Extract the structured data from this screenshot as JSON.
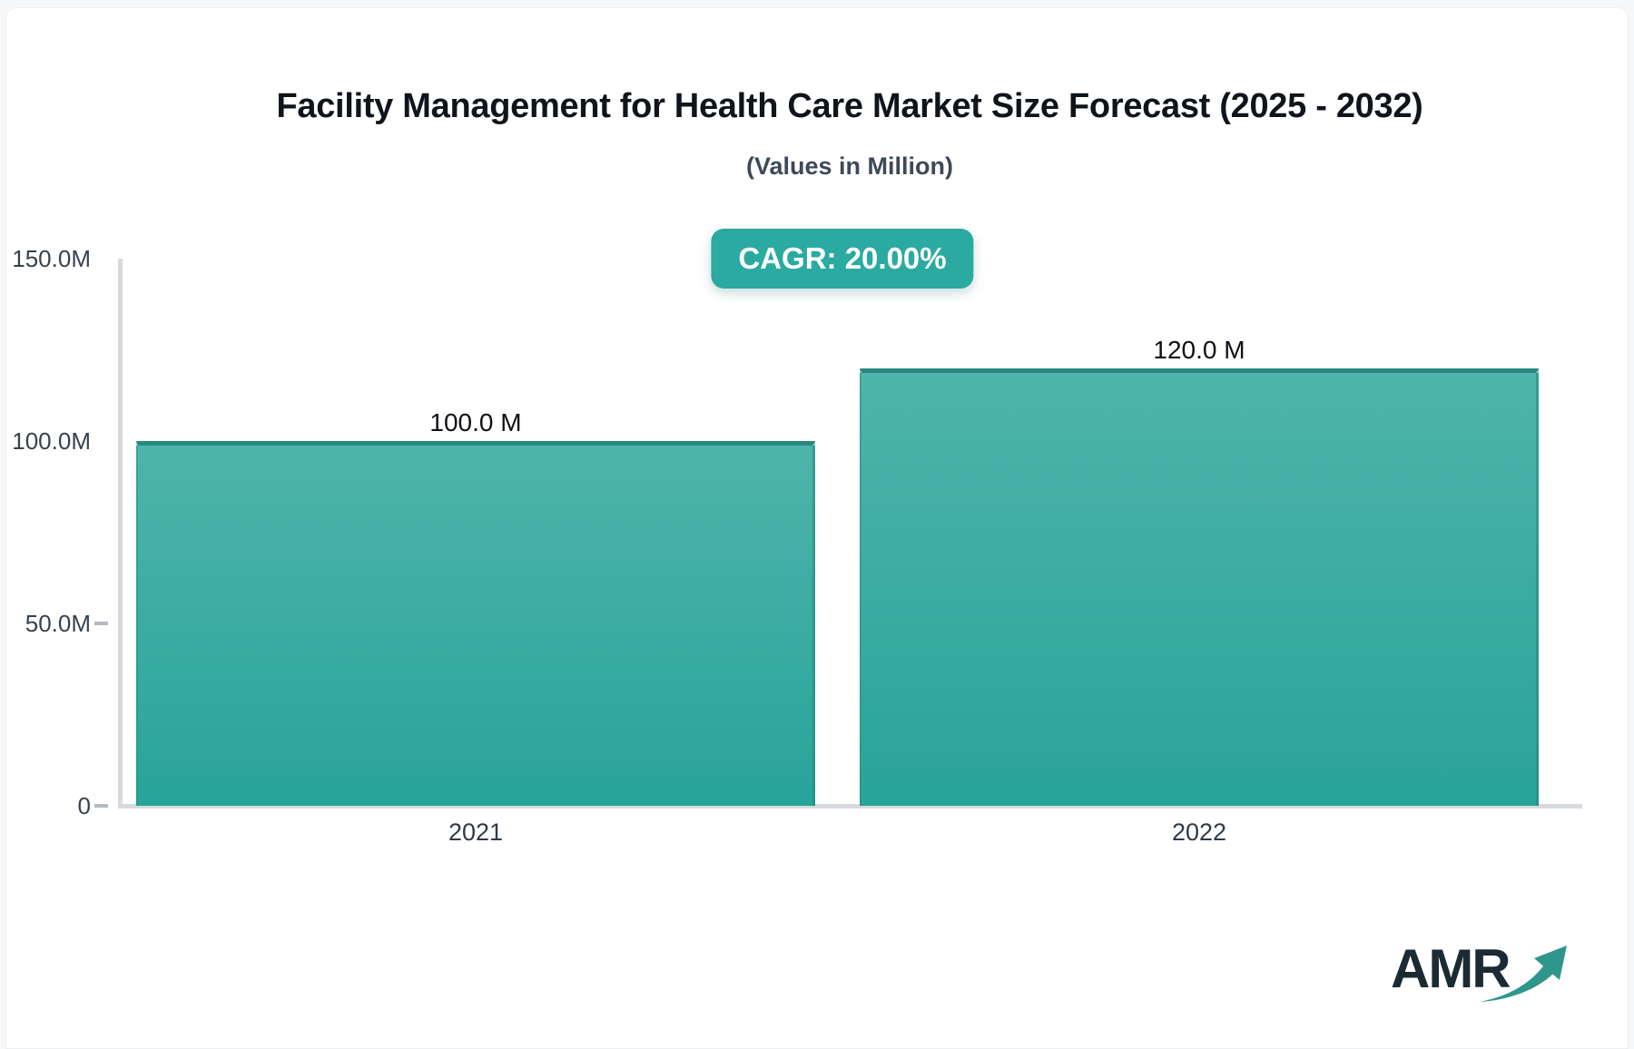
{
  "page": {
    "background_color": "#f6f7f9",
    "card_color": "#ffffff"
  },
  "header": {
    "title": "Facility Management for Health Care Market Size Forecast (2025 - 2032)",
    "subtitle": "(Values in Million)"
  },
  "badge": {
    "label": "CAGR: 20.00%",
    "background_color": "#2baaa1",
    "text_color": "#ffffff"
  },
  "chart_data": {
    "type": "bar",
    "title": "Facility Management for Health Care Market Size Forecast (2025 - 2032)",
    "subtitle": "(Values in Million)",
    "cagr_percent": 20.0,
    "categories": [
      "2021",
      "2022"
    ],
    "values": [
      100.0,
      120.0
    ],
    "value_labels": [
      "100.0 M",
      "120.0 M"
    ],
    "unit": "Million",
    "ylim": [
      0,
      150
    ],
    "yticks": [
      {
        "label": "150.0M",
        "value": 150,
        "dash": false
      },
      {
        "label": "100.0M",
        "value": 100,
        "dash": false
      },
      {
        "label": "50.0M",
        "value": 50,
        "dash": true
      },
      {
        "label": "0",
        "value": 0,
        "dash": true
      }
    ],
    "grid": false,
    "legend": "none",
    "colors": {
      "bar_gradient_top": "#4fb4ab",
      "bar_gradient_bottom": "#28a49a",
      "bar_border": "#28887f",
      "axis_line": "#d7dadd",
      "tick_dash": "#b4bac1",
      "ytick_text": "#38424e",
      "xtick_text": "#2f3a47",
      "value_text": "#0d1116"
    }
  },
  "logo": {
    "text": "AMR",
    "text_color": "#1b2a33",
    "arrow_icon": "growth-arrow-icon",
    "arrow_color": "#2f968e"
  }
}
